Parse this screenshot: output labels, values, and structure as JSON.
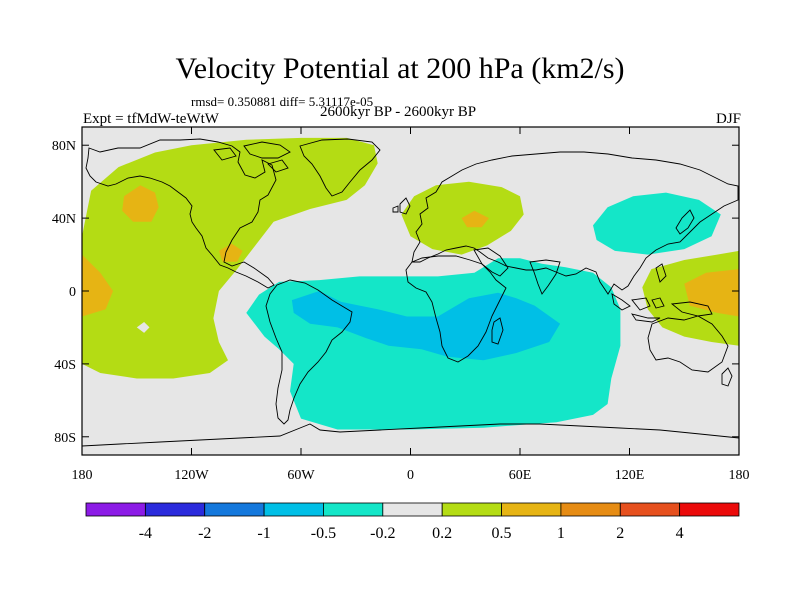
{
  "chart_data": {
    "type": "heatmap",
    "title": "Velocity Potential at 200 hPa (km2/s)",
    "stats_line": "rmsd= 0.350881 diff= 5.31117e-05",
    "experiment": "Expt = tfMdW-teWtW",
    "period": "2600kyr BP - 2600kyr BP",
    "season": "DJF",
    "projection": "cylindrical-equidistant",
    "xlim": [
      -180,
      180
    ],
    "ylim": [
      -90,
      90
    ],
    "x_ticks": [
      {
        "value": -180,
        "label": "180"
      },
      {
        "value": -120,
        "label": "120W"
      },
      {
        "value": -60,
        "label": "60W"
      },
      {
        "value": 0,
        "label": "0"
      },
      {
        "value": 60,
        "label": "60E"
      },
      {
        "value": 120,
        "label": "120E"
      },
      {
        "value": 180,
        "label": "180"
      }
    ],
    "y_ticks": [
      {
        "value": 80,
        "label": "80N"
      },
      {
        "value": 40,
        "label": "40N"
      },
      {
        "value": 0,
        "label": "0"
      },
      {
        "value": -40,
        "label": "40S"
      },
      {
        "value": -80,
        "label": "80S"
      }
    ],
    "colorbar": {
      "levels": [
        "-4",
        "-2",
        "-1",
        "-0.5",
        "-0.2",
        "0.2",
        "0.5",
        "1",
        "2",
        "4"
      ],
      "colors": [
        "#8C1BE6",
        "#2B2BDC",
        "#1478DC",
        "#00BFE6",
        "#14E6C8",
        "#E6E6E6",
        "#B4DC14",
        "#E6B414",
        "#E68C14",
        "#E6501E",
        "#EB0A0A"
      ]
    },
    "regions": [
      {
        "name": "north-pacific-atlantic-positive",
        "class": "0.2 to 0.5",
        "polygon": [
          [
            -180,
            30
          ],
          [
            -175,
            55
          ],
          [
            -160,
            68
          ],
          [
            -140,
            76
          ],
          [
            -120,
            80
          ],
          [
            -90,
            83
          ],
          [
            -60,
            84
          ],
          [
            -35,
            84
          ],
          [
            -20,
            80
          ],
          [
            -18,
            70
          ],
          [
            -25,
            58
          ],
          [
            -35,
            50
          ],
          [
            -55,
            45
          ],
          [
            -75,
            38
          ],
          [
            -85,
            25
          ],
          [
            -95,
            12
          ],
          [
            -105,
            0
          ],
          [
            -108,
            -15
          ],
          [
            -105,
            -28
          ],
          [
            -100,
            -38
          ],
          [
            -110,
            -45
          ],
          [
            -130,
            -48
          ],
          [
            -150,
            -48
          ],
          [
            -170,
            -45
          ],
          [
            -180,
            -40
          ]
        ]
      },
      {
        "name": "north-pacific-maximum",
        "class": "0.5 to 1",
        "polygon": [
          [
            -157,
            52
          ],
          [
            -148,
            58
          ],
          [
            -140,
            54
          ],
          [
            -138,
            46
          ],
          [
            -142,
            38
          ],
          [
            -152,
            38
          ],
          [
            -158,
            44
          ]
        ]
      },
      {
        "name": "tropical-east-pacific-maximum",
        "class": "0.5 to 1",
        "polygon": [
          [
            -180,
            20
          ],
          [
            -170,
            10
          ],
          [
            -163,
            0
          ],
          [
            -167,
            -10
          ],
          [
            -180,
            -14
          ]
        ]
      },
      {
        "name": "central-america-maximum",
        "class": "0.5 to 1",
        "polygon": [
          [
            -105,
            22
          ],
          [
            -98,
            26
          ],
          [
            -92,
            22
          ],
          [
            -95,
            16
          ],
          [
            -103,
            16
          ]
        ]
      },
      {
        "name": "mediterranean-positive",
        "class": "0.2 to 0.5",
        "polygon": [
          [
            -5,
            42
          ],
          [
            2,
            52
          ],
          [
            14,
            58
          ],
          [
            32,
            60
          ],
          [
            50,
            57
          ],
          [
            60,
            52
          ],
          [
            62,
            42
          ],
          [
            55,
            33
          ],
          [
            42,
            25
          ],
          [
            28,
            20
          ],
          [
            12,
            23
          ],
          [
            0,
            30
          ]
        ]
      },
      {
        "name": "middle-east-maximum",
        "class": "0.5 to 1",
        "polygon": [
          [
            28,
            40
          ],
          [
            35,
            44
          ],
          [
            43,
            40
          ],
          [
            39,
            35
          ],
          [
            31,
            35
          ]
        ]
      },
      {
        "name": "southern-hemisphere-negative",
        "class": "-0.5 to -0.2",
        "polygon": [
          [
            -90,
            -12
          ],
          [
            -83,
            -2
          ],
          [
            -72,
            5
          ],
          [
            -50,
            6
          ],
          [
            -28,
            8
          ],
          [
            -10,
            8
          ],
          [
            15,
            8
          ],
          [
            35,
            10
          ],
          [
            48,
            18
          ],
          [
            60,
            18
          ],
          [
            72,
            15
          ],
          [
            85,
            13
          ],
          [
            100,
            10
          ],
          [
            110,
            2
          ],
          [
            115,
            -10
          ],
          [
            115,
            -30
          ],
          [
            110,
            -48
          ],
          [
            108,
            -62
          ],
          [
            100,
            -68
          ],
          [
            80,
            -72
          ],
          [
            40,
            -75
          ],
          [
            0,
            -76
          ],
          [
            -40,
            -76
          ],
          [
            -60,
            -70
          ],
          [
            -66,
            -55
          ],
          [
            -64,
            -40
          ],
          [
            -72,
            -32
          ],
          [
            -80,
            -25
          ]
        ]
      },
      {
        "name": "southern-hemisphere-minimum",
        "class": "-1 to -0.5",
        "polygon": [
          [
            -65,
            -5
          ],
          [
            -50,
            0
          ],
          [
            -38,
            -6
          ],
          [
            -18,
            -10
          ],
          [
            -2,
            -14
          ],
          [
            15,
            -14
          ],
          [
            32,
            -4
          ],
          [
            48,
            -1
          ],
          [
            58,
            -4
          ],
          [
            68,
            -8
          ],
          [
            82,
            -18
          ],
          [
            76,
            -28
          ],
          [
            58,
            -34
          ],
          [
            40,
            -38
          ],
          [
            20,
            -36
          ],
          [
            6,
            -32
          ],
          [
            -12,
            -30
          ],
          [
            -24,
            -26
          ],
          [
            -40,
            -20
          ],
          [
            -55,
            -18
          ],
          [
            -64,
            -12
          ]
        ]
      },
      {
        "name": "west-pacific-negative",
        "class": "-0.5 to -0.2",
        "polygon": [
          [
            100,
            36
          ],
          [
            108,
            46
          ],
          [
            122,
            52
          ],
          [
            140,
            54
          ],
          [
            158,
            50
          ],
          [
            170,
            42
          ],
          [
            165,
            30
          ],
          [
            150,
            23
          ],
          [
            130,
            20
          ],
          [
            112,
            22
          ],
          [
            102,
            28
          ]
        ]
      },
      {
        "name": "tropical-west-pacific-positive",
        "class": "0.2 to 0.5",
        "polygon": [
          [
            132,
            12
          ],
          [
            150,
            17
          ],
          [
            168,
            20
          ],
          [
            180,
            22
          ],
          [
            180,
            -30
          ],
          [
            165,
            -28
          ],
          [
            150,
            -25
          ],
          [
            138,
            -20
          ],
          [
            130,
            -10
          ],
          [
            127,
            2
          ]
        ]
      },
      {
        "name": "west-pacific-maximum",
        "class": "0.5 to 1",
        "polygon": [
          [
            150,
            4
          ],
          [
            162,
            10
          ],
          [
            180,
            12
          ],
          [
            180,
            -14
          ],
          [
            168,
            -12
          ],
          [
            153,
            -8
          ]
        ]
      },
      {
        "name": "pacific-island-gap",
        "class": "-0.2 to 0.2",
        "polygon": [
          [
            -150,
            -20
          ],
          [
            -146,
            -17
          ],
          [
            -143,
            -20
          ],
          [
            -146,
            -23
          ]
        ]
      }
    ]
  }
}
